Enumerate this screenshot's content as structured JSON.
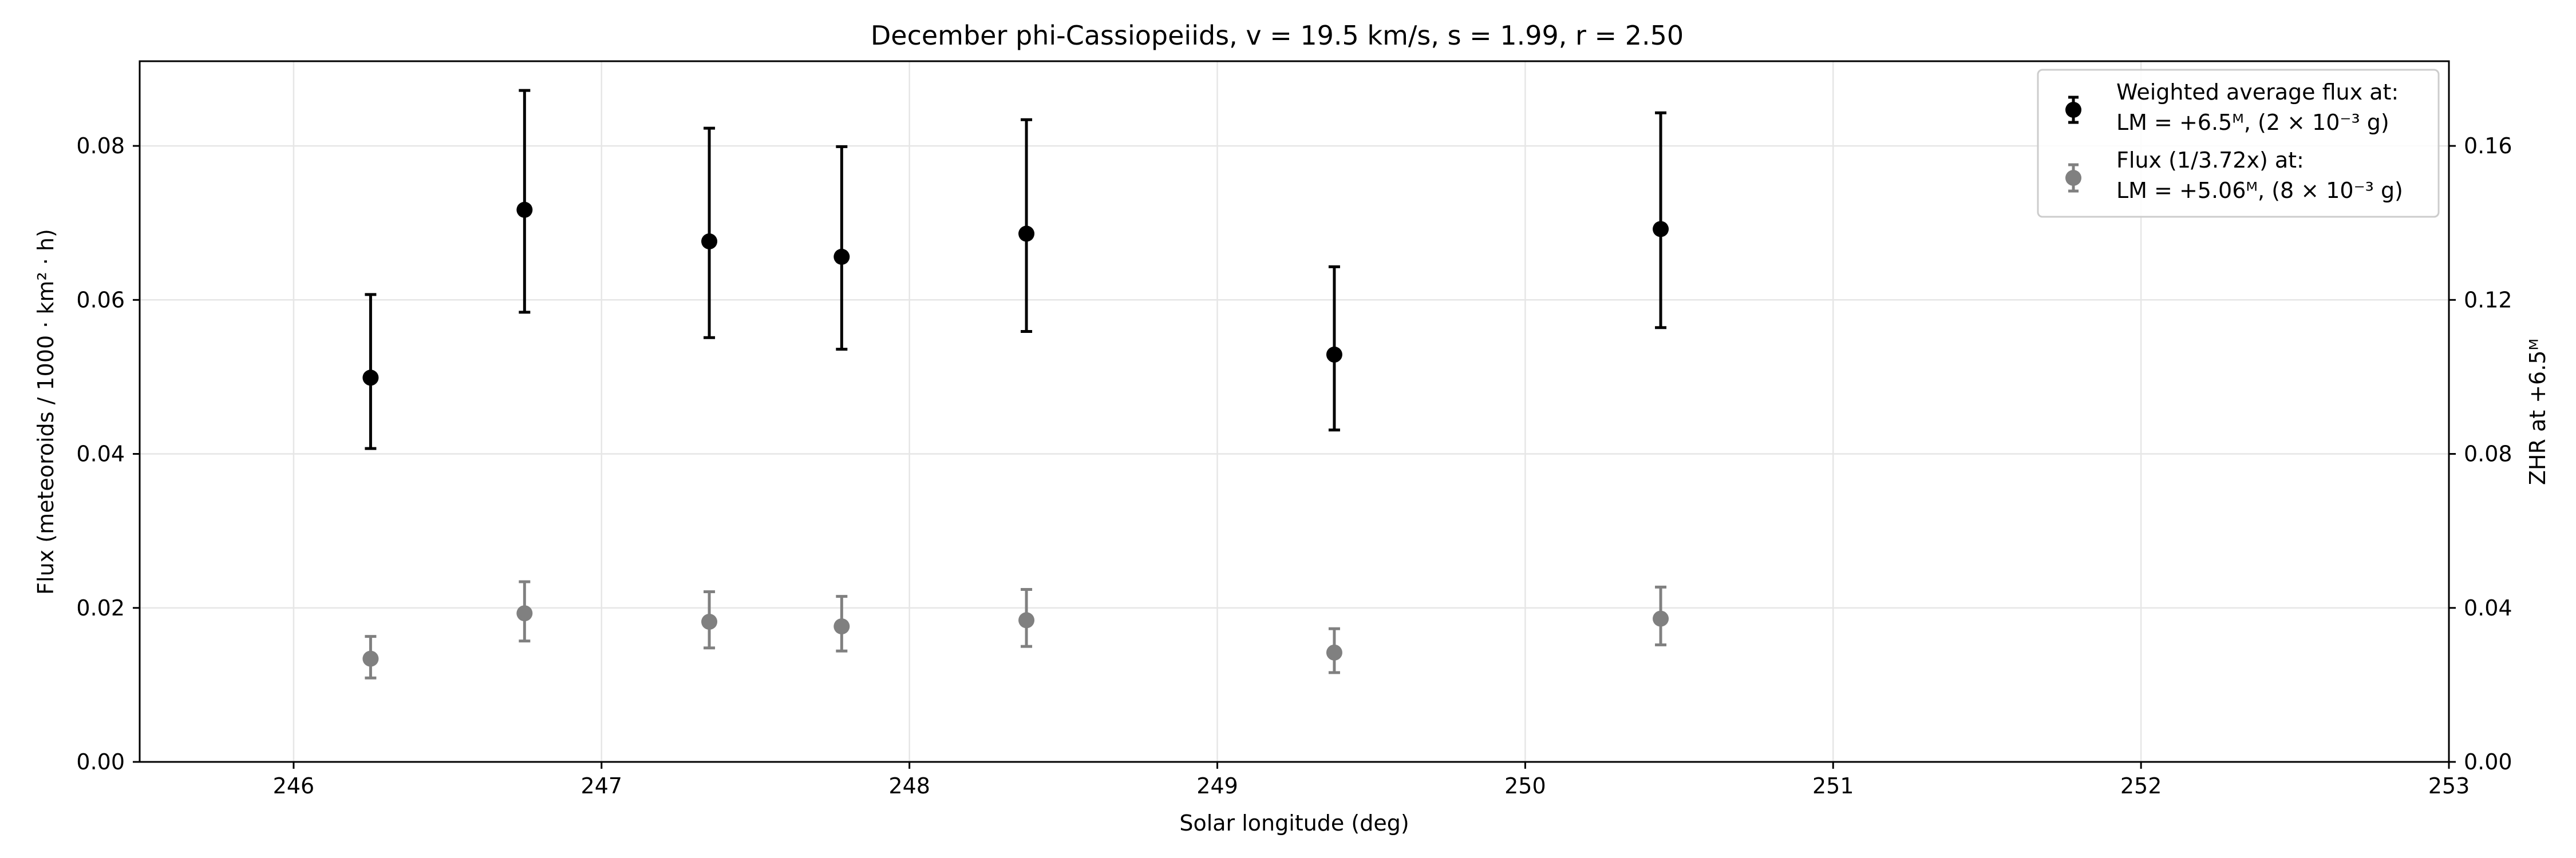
{
  "chart_data": {
    "type": "scatter",
    "title": "December phi-Cassiopeiids, v = 19.5 km/s, s = 1.99, r = 2.50",
    "xlabel": "Solar longitude (deg)",
    "ylabel": "Flux (meteoroids / 1000 · km² · h)",
    "ylabel_right": "ZHR at +6.5ᴹ",
    "xlim": [
      245.5,
      253
    ],
    "ylim": [
      0,
      0.091
    ],
    "ylim_right": [
      0,
      0.182
    ],
    "xticks": [
      246,
      247,
      248,
      249,
      250,
      251,
      252,
      253
    ],
    "xtick_labels": [
      "246",
      "247",
      "248",
      "249",
      "250",
      "251",
      "252",
      "253"
    ],
    "yticks": [
      0.0,
      0.02,
      0.04,
      0.06,
      0.08
    ],
    "ytick_labels": [
      "0.00",
      "0.02",
      "0.04",
      "0.06",
      "0.08"
    ],
    "yticks_right": [
      0.0,
      0.04,
      0.08,
      0.12,
      0.16
    ],
    "ytick_labels_right": [
      "0.00",
      "0.04",
      "0.08",
      "0.12",
      "0.16"
    ],
    "grid": true,
    "legend_position": "top-right",
    "series": [
      {
        "name": "Weighted average flux at: LM = +6.5ᴹ, (2 × 10⁻³ g)",
        "legend_lines": [
          "Weighted average flux at:",
          "LM = +6.5ᴹ, (2 × 10⁻³ g)"
        ],
        "color": "#000000",
        "x": [
          246.25,
          246.75,
          247.35,
          247.78,
          248.38,
          249.38,
          250.44
        ],
        "y": [
          0.0499,
          0.0717,
          0.0676,
          0.0656,
          0.0686,
          0.0529,
          0.0692
        ],
        "y_low": [
          0.0407,
          0.0584,
          0.0551,
          0.0536,
          0.0559,
          0.0431,
          0.0564
        ],
        "y_high": [
          0.0607,
          0.0872,
          0.0823,
          0.0799,
          0.0834,
          0.0643,
          0.0843
        ]
      },
      {
        "name": "Flux (1/3.72x) at: LM = +5.06ᴹ, (8 × 10⁻³ g)",
        "legend_lines": [
          "Flux (1/3.72x) at:",
          "LM = +5.06ᴹ, (8 × 10⁻³ g)"
        ],
        "color": "#808080",
        "x": [
          246.25,
          246.75,
          247.35,
          247.78,
          248.38,
          249.38,
          250.44
        ],
        "y": [
          0.0134,
          0.0193,
          0.0182,
          0.0176,
          0.0184,
          0.0142,
          0.0186
        ],
        "y_low": [
          0.0109,
          0.0157,
          0.0148,
          0.0144,
          0.015,
          0.0116,
          0.0152
        ],
        "y_high": [
          0.0163,
          0.0234,
          0.0221,
          0.0215,
          0.0224,
          0.0173,
          0.0227
        ]
      }
    ]
  }
}
